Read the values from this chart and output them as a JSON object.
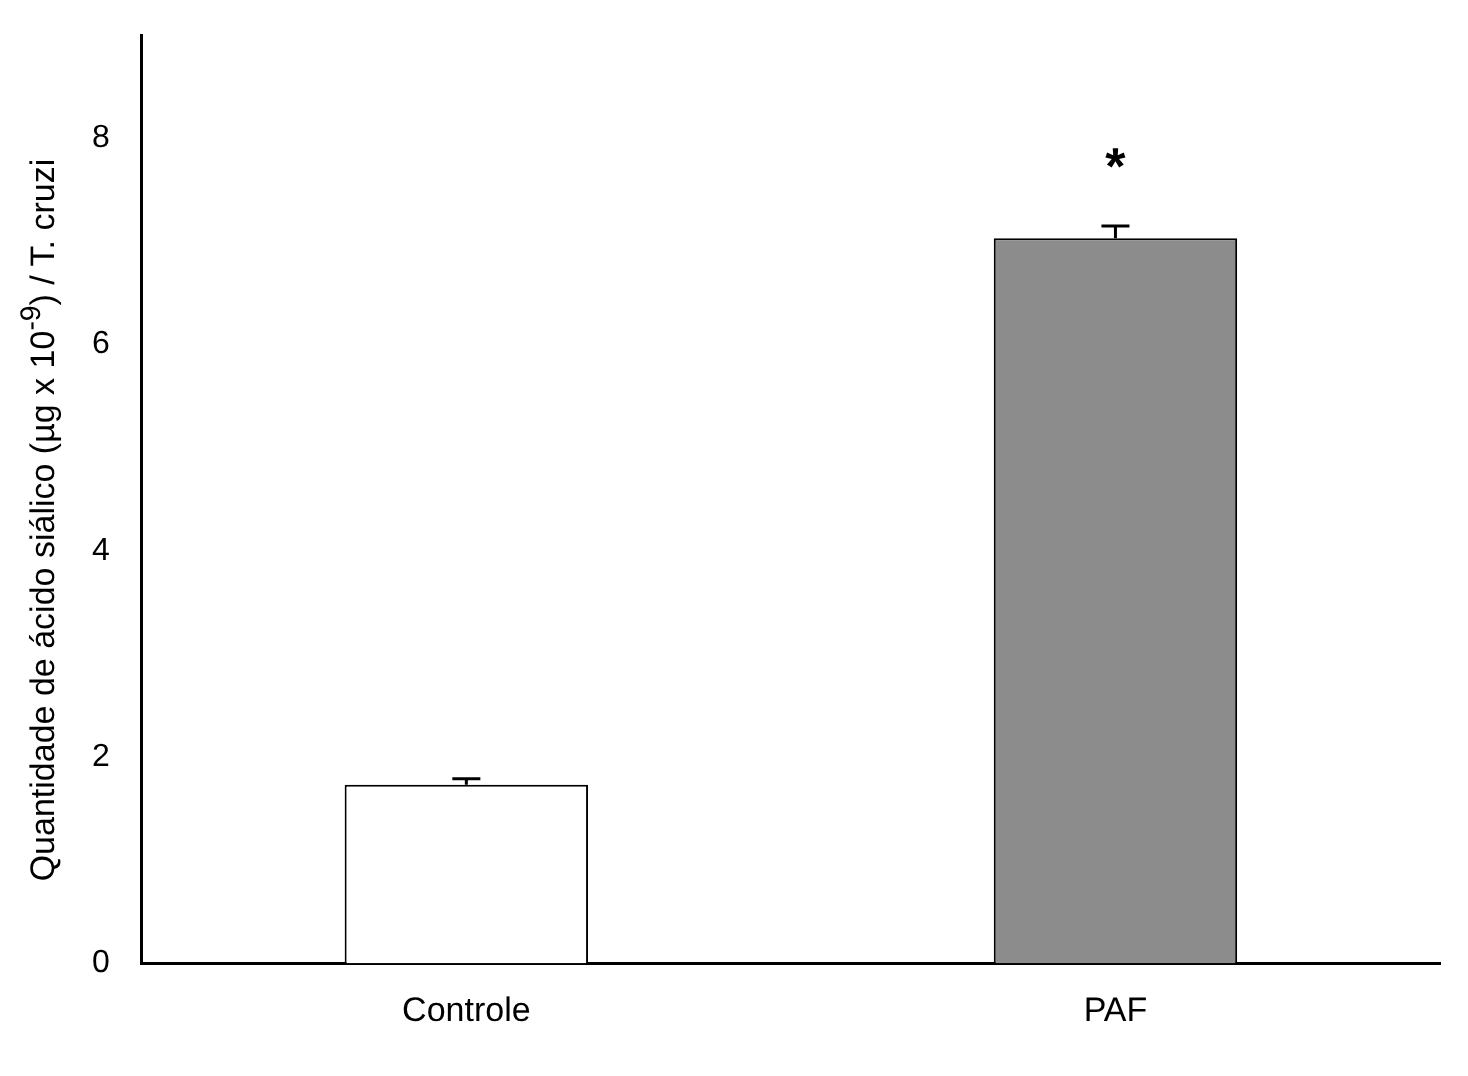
{
  "chart_data": {
    "type": "bar",
    "ylabel": "Quantidade de ácido siálico (µg x 10$^{-9}$) / T. cruzi",
    "categories": [
      "Controle",
      "PAF"
    ],
    "values": [
      1.73,
      7.03
    ],
    "errors": [
      0.06,
      0.12
    ],
    "colors": [
      "#ffffff",
      "#8c8c8c"
    ],
    "ylim": [
      0,
      9
    ],
    "yticks": [
      0,
      2,
      4,
      6,
      8
    ],
    "annotations": [
      "*"
    ],
    "grid": false,
    "legend": false
  }
}
